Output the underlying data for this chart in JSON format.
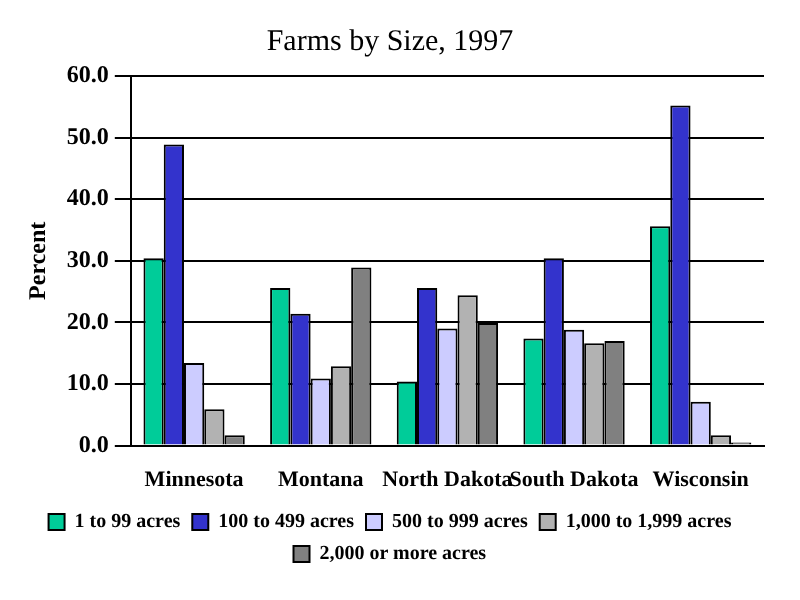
{
  "chart_data": {
    "type": "bar",
    "title": "Farms by Size, 1997",
    "ylabel": "Percent",
    "categories": [
      "Minnesota",
      "Montana",
      "North Dakota",
      "South Dakota",
      "Wisconsin"
    ],
    "series": [
      {
        "name": "1 to 99 acres",
        "color": "#00cc99",
        "values": [
          30.4,
          25.6,
          10.4,
          17.4,
          35.6
        ]
      },
      {
        "name": "100 to 499 acres",
        "color": "#3333cc",
        "values": [
          48.9,
          21.4,
          25.6,
          30.4,
          55.2
        ]
      },
      {
        "name": "500 to 999 acres",
        "color": "#ccccff",
        "values": [
          13.4,
          10.9,
          19.0,
          18.8,
          7.1
        ]
      },
      {
        "name": "1,000 to 1,999 acres",
        "color": "#b2b2b2",
        "values": [
          5.9,
          12.9,
          24.4,
          16.6,
          1.7
        ]
      },
      {
        "name": "2,000 or more acres",
        "color": "#808080",
        "values": [
          1.7,
          28.9,
          19.9,
          17.0,
          0.5
        ]
      }
    ],
    "ylim": [
      0,
      60
    ],
    "yticks": [
      {
        "value": 0,
        "label": "0.0"
      },
      {
        "value": 10,
        "label": "10.0"
      },
      {
        "value": 20,
        "label": "20.0"
      },
      {
        "value": 30,
        "label": "30.0"
      },
      {
        "value": 40,
        "label": "40.0"
      },
      {
        "value": 50,
        "label": "50.0"
      },
      {
        "value": 60,
        "label": "60.0"
      }
    ],
    "grid": "y",
    "legend": "bottom"
  }
}
